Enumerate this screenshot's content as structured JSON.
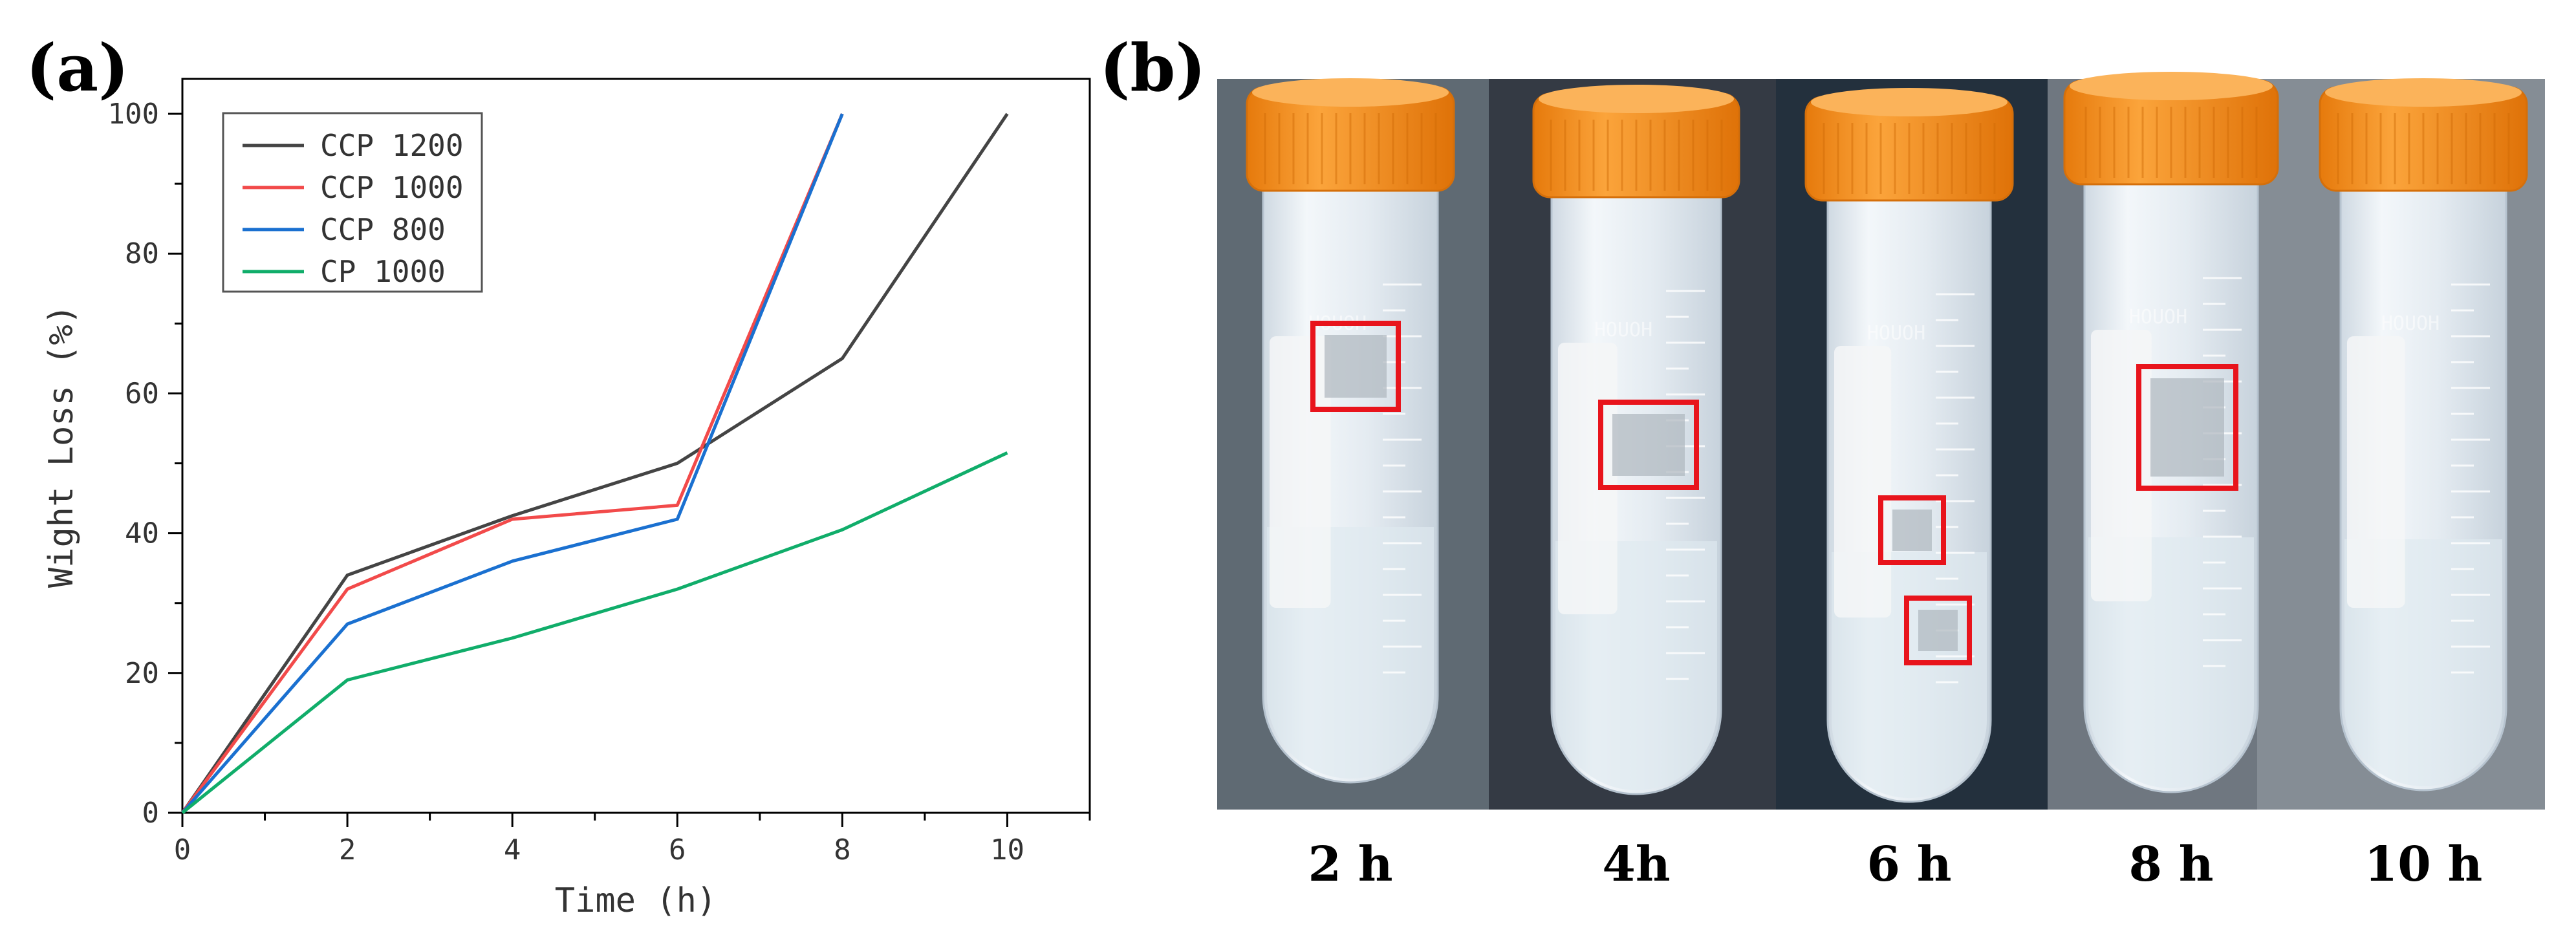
{
  "panel_a": {
    "label": "(a)"
  },
  "panel_b": {
    "label": "(b)"
  },
  "chart_data": {
    "type": "line",
    "title": "",
    "xlabel": "Time (h)",
    "ylabel": "Wight Loss (%)",
    "xlim": [
      0,
      11
    ],
    "ylim": [
      0,
      105
    ],
    "x_ticks": [
      0,
      2,
      4,
      6,
      8,
      10
    ],
    "y_ticks": [
      0,
      20,
      40,
      60,
      80,
      100
    ],
    "legend_position": "top-left",
    "series": [
      {
        "name": "CCP 1200",
        "color": "#444444",
        "x": [
          0,
          2,
          4,
          6,
          8,
          10
        ],
        "y": [
          0,
          34,
          42.5,
          50,
          65,
          100
        ]
      },
      {
        "name": "CCP 1000",
        "color": "#f24a4a",
        "x": [
          0,
          2,
          4,
          6,
          8
        ],
        "y": [
          0,
          32,
          42,
          44,
          100
        ]
      },
      {
        "name": "CCP 800",
        "color": "#1a70d0",
        "x": [
          0,
          2,
          4,
          6,
          8
        ],
        "y": [
          0,
          27,
          36,
          42,
          100
        ]
      },
      {
        "name": "CP 1000",
        "color": "#10ad6a",
        "x": [
          0,
          2,
          4,
          6,
          8,
          10
        ],
        "y": [
          0,
          19,
          25,
          32,
          40.5,
          51.5
        ]
      }
    ]
  },
  "photo": {
    "caption_labels": [
      "2 h",
      "4h",
      "6 h",
      "8 h",
      "10 h"
    ],
    "tube_prints": [
      "HOUOH",
      "HOUOH",
      "HOUOH",
      "HOUOH",
      "HOUOH"
    ],
    "colors": {
      "cap": "#f38a1a",
      "cap_dark": "#d56f0a",
      "highlight_box": "#e8141c",
      "tube_fill": "#e6edf2"
    }
  }
}
